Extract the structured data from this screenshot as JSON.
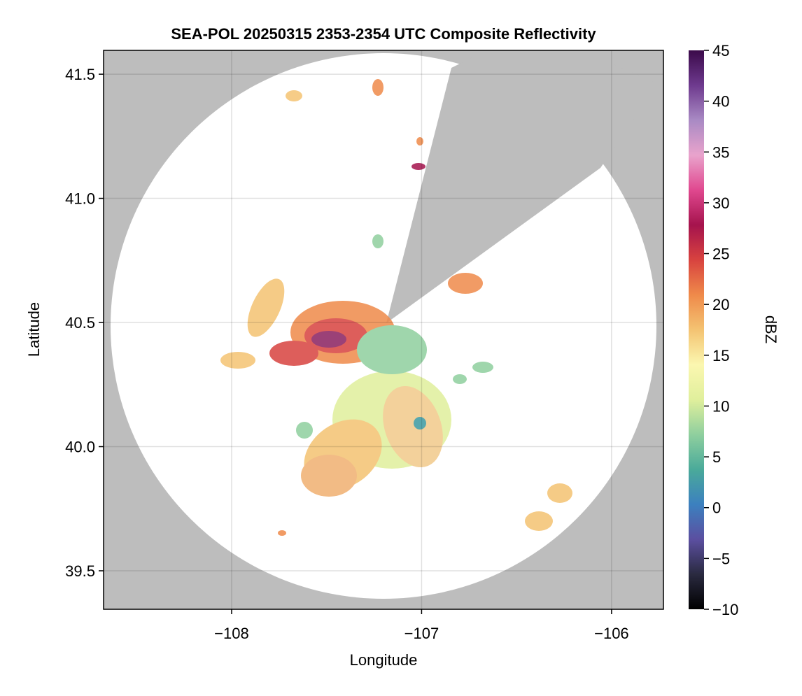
{
  "chart_data": {
    "type": "radar-map",
    "title": "SEA-POL 20250315 2353-2354 UTC Composite Reflectivity",
    "xlabel": "Longitude",
    "ylabel": "Latitude",
    "xlim": [
      -108.674,
      -105.727
    ],
    "ylim": [
      39.345,
      41.596
    ],
    "xticks": [
      {
        "value": -108,
        "label": "−108"
      },
      {
        "value": -107,
        "label": "−107"
      },
      {
        "value": -106,
        "label": "−106"
      }
    ],
    "yticks": [
      39.5,
      {
        "value": 40,
        "label": "40.0"
      },
      40.5,
      {
        "value": 41,
        "label": "41.0"
      },
      41.5
    ],
    "grid": true,
    "colorbar": {
      "label": "dBZ",
      "lim": [
        -10,
        45
      ],
      "ticks": [
        {
          "value": -10,
          "label": "−10"
        },
        {
          "value": -5,
          "label": "−5"
        },
        0,
        5,
        10,
        15,
        20,
        25,
        30,
        35,
        40,
        45
      ],
      "colormap": [
        "#000000",
        "#2a2a40",
        "#5b4fa0",
        "#3c80bf",
        "#4aaa9a",
        "#8fcf9e",
        "#e0ef9c",
        "#fbf7b0",
        "#f4c372",
        "#ef8a4a",
        "#d8433f",
        "#a5134d",
        "#e0488f",
        "#e9a3cc",
        "#a98ac4",
        "#6e3a8e",
        "#3b0a4a"
      ]
    }
  }
}
